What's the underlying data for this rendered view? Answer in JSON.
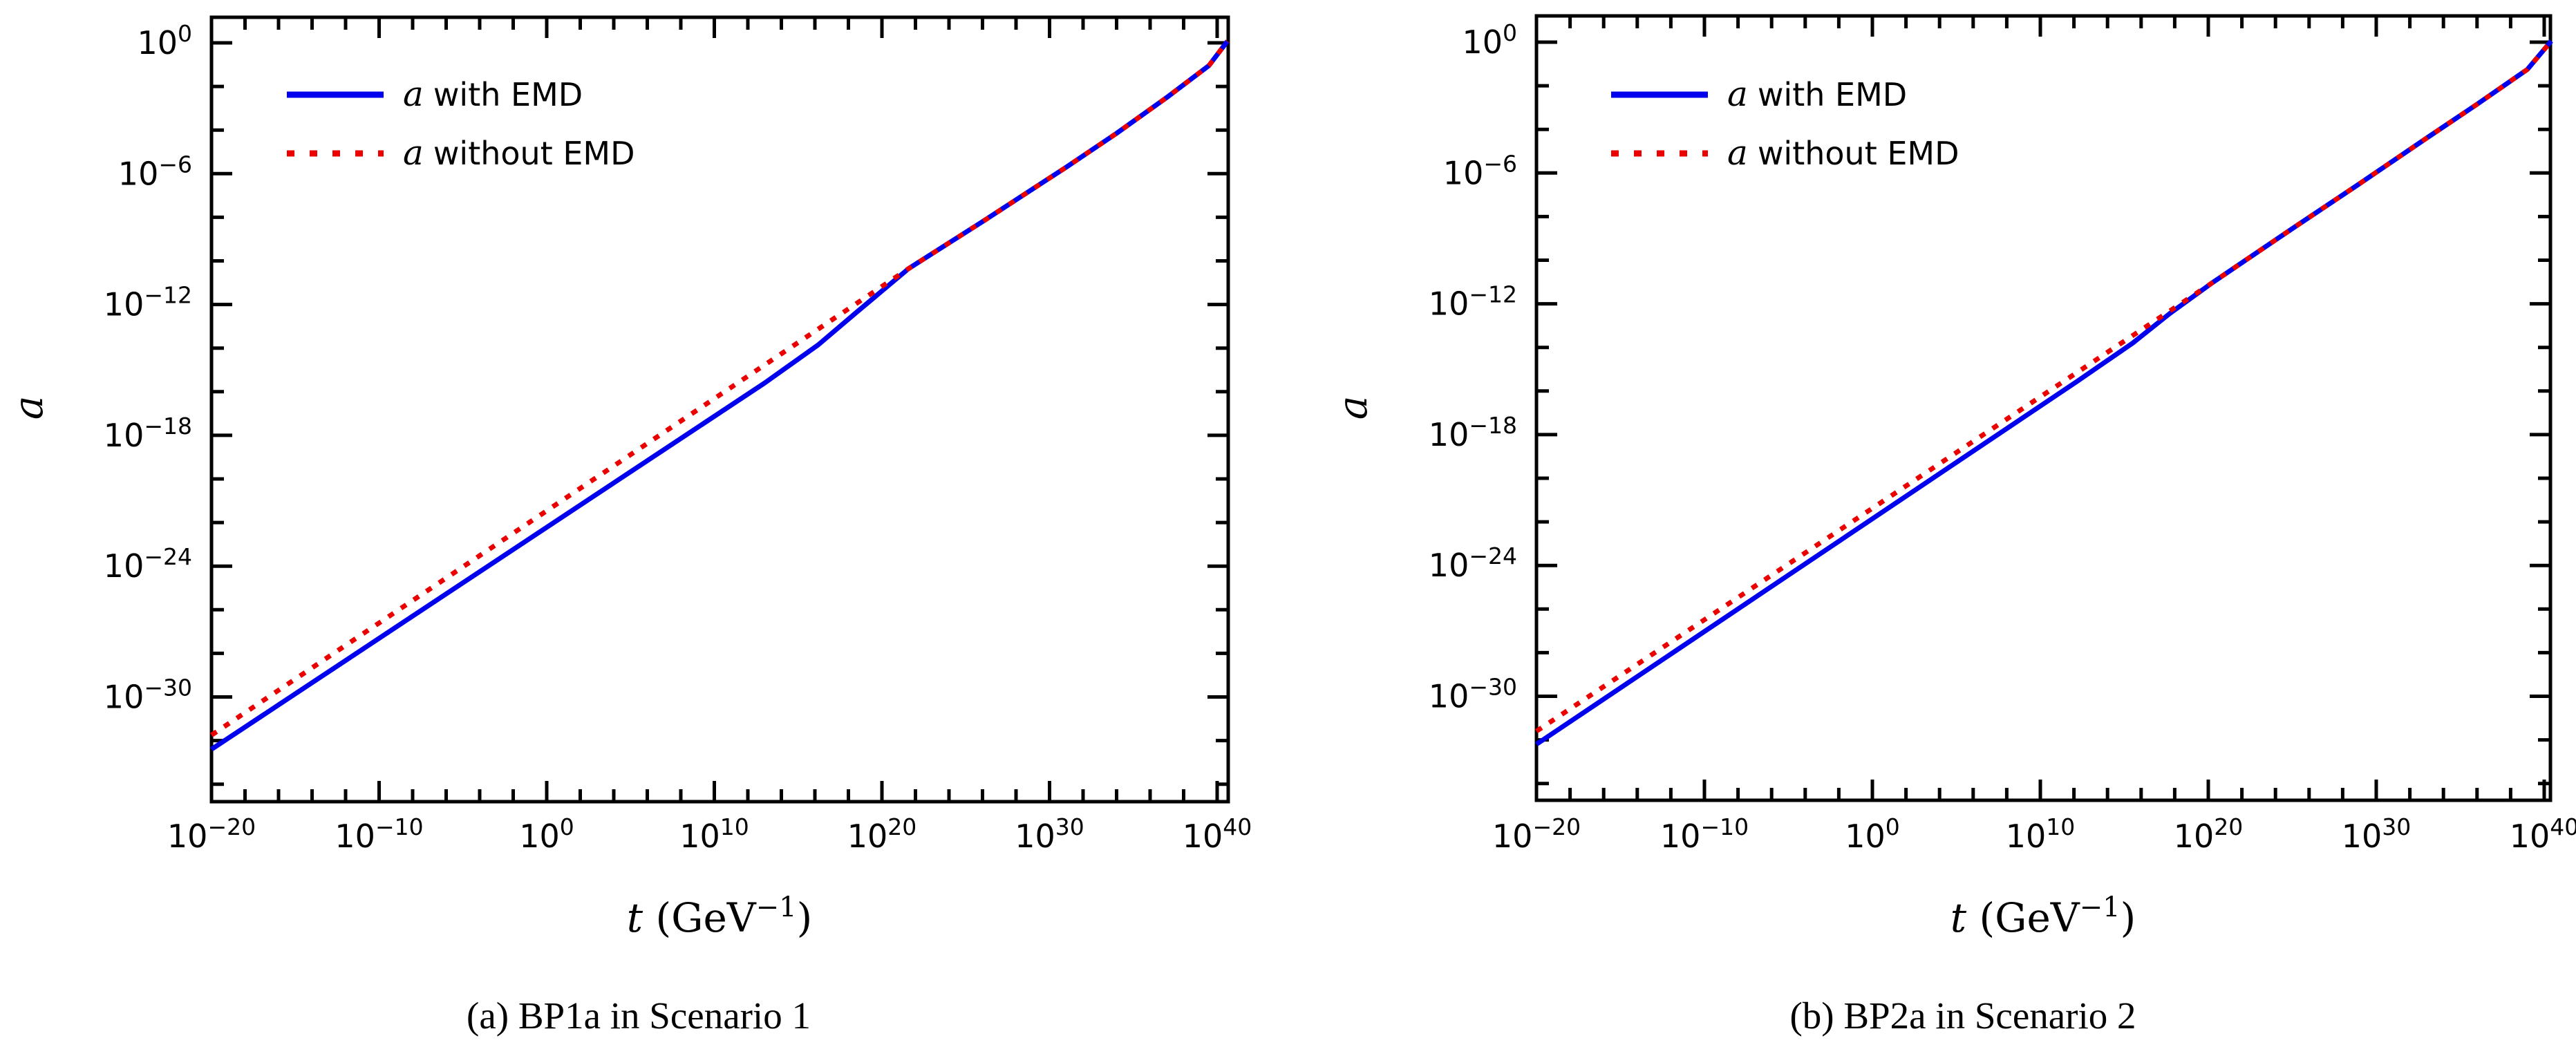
{
  "page": {
    "background": "#ffffff",
    "axis_color": "#000000",
    "figure_description": "Two log-log plots of scale factor a versus time t comparing evolution with and without an early matter-dominated era (EMD)"
  },
  "chart_data": [
    {
      "type": "line",
      "caption": "(a) BP1a in Scenario 1",
      "xlabel": "t (GeV⁻¹)",
      "xlabel_parts": {
        "symbol": "t",
        "pre": " (GeV",
        "sup": "−1",
        "post": ")"
      },
      "ylabel": "a",
      "x_scale": "log",
      "y_scale": "log",
      "x_range_exp": [
        -20,
        40.66
      ],
      "y_range_exp": [
        -34.8,
        1.17
      ],
      "x_major_ticks": [
        {
          "exp": -20,
          "label": "10⁻²⁰"
        },
        {
          "exp": -10,
          "label": "10⁻¹⁰"
        },
        {
          "exp": 0,
          "label": "10⁰"
        },
        {
          "exp": 10,
          "label": "10¹⁰"
        },
        {
          "exp": 20,
          "label": "10²⁰"
        },
        {
          "exp": 30,
          "label": "10³⁰"
        },
        {
          "exp": 40,
          "label": "10⁴⁰"
        }
      ],
      "y_major_ticks": [
        {
          "exp": 0,
          "label": "10⁰"
        },
        {
          "exp": -6,
          "label": "10⁻⁶"
        },
        {
          "exp": -12,
          "label": "10⁻¹²"
        },
        {
          "exp": -18,
          "label": "10⁻¹⁸"
        },
        {
          "exp": -24,
          "label": "10⁻²⁴"
        },
        {
          "exp": -30,
          "label": "10⁻³⁰"
        }
      ],
      "minor_tick_step_exp": 2,
      "grid": false,
      "legend_position": "upper-left",
      "legend": [
        {
          "label": "a with EMD",
          "label_math": "a",
          "label_rest": "with EMD",
          "color": "#0000EE",
          "style": "solid"
        },
        {
          "label": "a without EMD",
          "label_math": "a",
          "label_rest": "without EMD",
          "color": "#EB0000",
          "style": "dotted"
        }
      ],
      "series": [
        {
          "name": "a with EMD",
          "color": "#0000EE",
          "style": "solid",
          "points_log10": [
            [
              -20,
              -32.4
            ],
            [
              13,
              -15.6
            ],
            [
              16.2,
              -13.85
            ],
            [
              18.5,
              -12.35
            ],
            [
              21.6,
              -10.35
            ],
            [
              26,
              -8.2
            ],
            [
              31,
              -5.7
            ],
            [
              34,
              -4.15
            ],
            [
              37,
              -2.5
            ],
            [
              39.5,
              -1.05
            ],
            [
              40.62,
              0.08
            ]
          ]
        },
        {
          "name": "a without EMD",
          "color": "#EB0000",
          "style": "dotted",
          "points_log10": [
            [
              -20,
              -31.75
            ],
            [
              21.6,
              -10.35
            ],
            [
              26,
              -8.2
            ],
            [
              31,
              -5.7
            ],
            [
              34,
              -4.15
            ],
            [
              37,
              -2.5
            ],
            [
              39.5,
              -1.05
            ],
            [
              40.62,
              0.08
            ]
          ]
        }
      ]
    },
    {
      "type": "line",
      "caption": "(b) BP2a in Scenario 2",
      "xlabel": "t (GeV⁻¹)",
      "xlabel_parts": {
        "symbol": "t",
        "pre": " (GeV",
        "sup": "−1",
        "post": ")"
      },
      "ylabel": "a",
      "x_scale": "log",
      "y_scale": "log",
      "x_range_exp": [
        -20,
        40.4
      ],
      "y_range_exp": [
        -34.8,
        1.2
      ],
      "x_major_ticks": [
        {
          "exp": -20,
          "label": "10⁻²⁰"
        },
        {
          "exp": -10,
          "label": "10⁻¹⁰"
        },
        {
          "exp": 0,
          "label": "10⁰"
        },
        {
          "exp": 10,
          "label": "10¹⁰"
        },
        {
          "exp": 20,
          "label": "10²⁰"
        },
        {
          "exp": 30,
          "label": "10³⁰"
        },
        {
          "exp": 40,
          "label": "10⁴⁰"
        }
      ],
      "y_major_ticks": [
        {
          "exp": 0,
          "label": "10⁰"
        },
        {
          "exp": -6,
          "label": "10⁻⁶"
        },
        {
          "exp": -12,
          "label": "10⁻¹²"
        },
        {
          "exp": -18,
          "label": "10⁻¹⁸"
        },
        {
          "exp": -24,
          "label": "10⁻²⁴"
        },
        {
          "exp": -30,
          "label": "10⁻³⁰"
        }
      ],
      "minor_tick_step_exp": 2,
      "grid": false,
      "legend_position": "upper-left",
      "legend": [
        {
          "label": "a with EMD",
          "label_math": "a",
          "label_rest": "with EMD",
          "color": "#0000EE",
          "style": "solid"
        },
        {
          "label": "a without EMD",
          "label_math": "a",
          "label_rest": "without EMD",
          "color": "#EB0000",
          "style": "dotted"
        }
      ],
      "series": [
        {
          "name": "a with EMD",
          "color": "#0000EE",
          "style": "solid",
          "points_log10": [
            [
              -20,
              -32.2
            ],
            [
              12.2,
              -15.55
            ],
            [
              15.5,
              -13.8
            ],
            [
              17.7,
              -12.45
            ],
            [
              20.3,
              -11.0
            ],
            [
              25,
              -8.55
            ],
            [
              28.8,
              -6.6
            ],
            [
              33,
              -4.4
            ],
            [
              36,
              -2.85
            ],
            [
              39,
              -1.25
            ],
            [
              40.42,
              0.05
            ]
          ]
        },
        {
          "name": "a without EMD",
          "color": "#EB0000",
          "style": "dotted",
          "points_log10": [
            [
              -20,
              -31.6
            ],
            [
              20.3,
              -11.0
            ],
            [
              25,
              -8.55
            ],
            [
              28.8,
              -6.6
            ],
            [
              33,
              -4.4
            ],
            [
              36,
              -2.85
            ],
            [
              39,
              -1.25
            ],
            [
              40.42,
              0.05
            ]
          ]
        }
      ]
    }
  ]
}
